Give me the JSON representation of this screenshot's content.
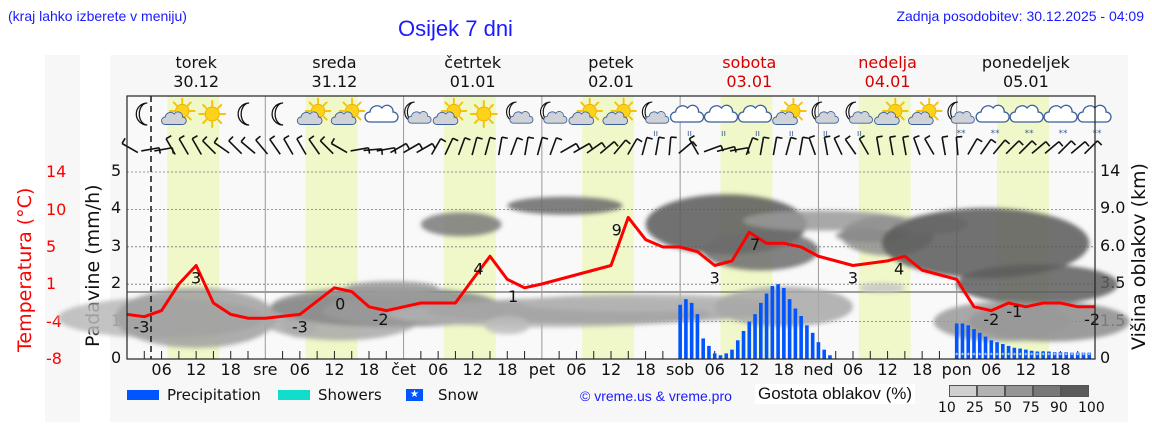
{
  "header": {
    "city_hint": "(kraj lahko izberete v meniju)",
    "title": "Osijek 7 dni",
    "last_update": "Zadnja posodobitev: 30.12.2025 - 04:09"
  },
  "days": [
    {
      "name": "torek",
      "date": "30.12",
      "weekend": false
    },
    {
      "name": "sreda",
      "date": "31.12",
      "weekend": false
    },
    {
      "name": "četrtek",
      "date": "01.01",
      "weekend": false
    },
    {
      "name": "petek",
      "date": "02.01",
      "weekend": false
    },
    {
      "name": "sobota",
      "date": "03.01",
      "weekend": true
    },
    {
      "name": "nedelja",
      "date": "04.01",
      "weekend": true
    },
    {
      "name": "ponedeljek",
      "date": "05.01",
      "weekend": false
    }
  ],
  "x_ticks": [
    "06",
    "12",
    "18",
    "sre",
    "06",
    "12",
    "18",
    "čet",
    "06",
    "12",
    "18",
    "pet",
    "06",
    "12",
    "18",
    "sob",
    "06",
    "12",
    "18",
    "ned",
    "06",
    "12",
    "18",
    "pon",
    "06",
    "12",
    "18"
  ],
  "axes": {
    "left_temp_label": "Temperatura (°C)",
    "left_precip_label": "Padavine (mm/h)",
    "right_label": "Višina oblakov (km)",
    "temp_ticks": [
      "14",
      "10",
      "5",
      "1",
      "-4",
      "-8"
    ],
    "precip_ticks": [
      "5",
      "4",
      "3",
      "2",
      "1",
      "0"
    ],
    "cloud_ticks": [
      "14",
      "9.0",
      "6.0",
      "3.5",
      "1.5",
      "0"
    ]
  },
  "legend": {
    "precipitation": "Precipitation",
    "showers": "Showers",
    "snow": "Snow",
    "copyright": "© vreme.us & vreme.pro",
    "cloud_density": "Gostota oblakov (%)",
    "cloud_scale": [
      "10",
      "25",
      "50",
      "75",
      "90",
      "100"
    ]
  },
  "colors": {
    "temp_line": "#ff0000",
    "precip": "#0055ff",
    "showers": "#11ddcc",
    "snow": "#0055ff",
    "daylight": "#f0f7c8",
    "title_blue": "#1a1aff",
    "weekend_red": "#d40000",
    "cloud_scale": [
      "#cfcfcf",
      "#b2b2b2",
      "#959595",
      "#787878",
      "#5a5a5a"
    ]
  },
  "icons": [
    "moon-icon",
    "sun-cloud-icon",
    "sun-icon",
    "moon-icon",
    "moon-icon",
    "sun-cloud-icon",
    "sun-cloud-icon",
    "cloud-icon",
    "moon-cloud-icon",
    "sun-cloud-icon",
    "sun-icon",
    "moon-cloud-icon",
    "moon-cloud-icon",
    "sun-cloud-icon",
    "sun-cloud-icon",
    "moon-cloud-rain-icon",
    "cloud-rain-icon",
    "cloud-rain-icon",
    "cloud-rain-icon",
    "sun-cloud-rain-icon",
    "moon-cloud-rain-icon",
    "moon-cloud-rain-icon",
    "sun-cloud-icon",
    "sun-cloud-icon",
    "moon-cloud-snow-icon",
    "cloud-snow-icon",
    "cloud-snow-icon",
    "cloud-snow-icon",
    "cloud-snow-icon"
  ],
  "chart_data": {
    "type": "line",
    "title": "Osijek 7 dni",
    "xlabel": "",
    "ylabel": "Padavine (mm/h)",
    "ylim": [
      0,
      5
    ],
    "x_range_hours": [
      0,
      168
    ],
    "now_marker_hour": 4.15,
    "daylight_hours": [
      [
        7,
        16
      ],
      [
        31,
        40
      ],
      [
        55,
        64
      ],
      [
        79,
        88
      ],
      [
        103,
        112
      ],
      [
        127,
        136
      ],
      [
        151,
        160
      ]
    ],
    "series": [
      {
        "name": "Temperatura (°C)",
        "x_hours": [
          0,
          3,
          6,
          9,
          12,
          15,
          18,
          21,
          24,
          30,
          36,
          39,
          42,
          45,
          48,
          51,
          54,
          57,
          60,
          63,
          66,
          69,
          72,
          78,
          84,
          87,
          90,
          93,
          96,
          99,
          102,
          105,
          108,
          111,
          114,
          117,
          120,
          126,
          132,
          135,
          138,
          141,
          144,
          147,
          150,
          153,
          156,
          159,
          162,
          165,
          168
        ],
        "values": [
          -3,
          -3.3,
          -2.5,
          1,
          3,
          -1.5,
          -3,
          -3.5,
          -3.5,
          -3,
          0.5,
          0,
          -2,
          -2.5,
          -2,
          -1.5,
          -1.5,
          -1.5,
          1.5,
          4,
          1.5,
          0.5,
          1,
          2,
          3,
          9,
          6,
          5,
          5,
          4.5,
          3,
          3.5,
          7,
          5.5,
          5.5,
          5,
          4,
          3,
          3.5,
          4,
          2.5,
          2,
          1.5,
          -2,
          -2.5,
          -1.5,
          -2,
          -1.5,
          -1.5,
          -2,
          -2
        ]
      },
      {
        "name": "Precipitation (mm/h)",
        "x_hours": [
          96,
          97,
          98,
          99,
          100,
          101,
          102,
          103,
          104,
          105,
          106,
          107,
          108,
          109,
          110,
          111,
          112,
          113,
          114,
          115,
          116,
          117,
          118,
          119,
          120,
          121,
          122,
          144,
          145,
          146,
          147,
          148,
          149,
          150,
          151,
          152,
          153,
          154,
          155,
          156,
          157,
          158,
          159,
          160,
          161,
          162,
          163,
          164,
          165,
          166,
          167
        ],
        "values": [
          1.45,
          1.6,
          1.5,
          1.2,
          0.55,
          0.35,
          0.15,
          0.1,
          0.15,
          0.25,
          0.5,
          0.75,
          1.0,
          1.2,
          1.5,
          1.75,
          1.95,
          2.0,
          1.9,
          1.6,
          1.35,
          1.15,
          0.9,
          0.7,
          0.45,
          0.25,
          0.1,
          0.95,
          0.95,
          0.9,
          0.8,
          0.7,
          0.6,
          0.5,
          0.45,
          0.4,
          0.35,
          0.3,
          0.28,
          0.25,
          0.22,
          0.2,
          0.2,
          0.2,
          0.18,
          0.18,
          0.18,
          0.17,
          0.17,
          0.17,
          0.17
        ]
      }
    ],
    "temp_labels": [
      {
        "hour": 2.5,
        "text": "-3"
      },
      {
        "hour": 12,
        "text": "3"
      },
      {
        "hour": 30,
        "text": "-3"
      },
      {
        "hour": 37,
        "text": "0"
      },
      {
        "hour": 44,
        "text": "-2"
      },
      {
        "hour": 61,
        "text": "4"
      },
      {
        "hour": 67,
        "text": "1"
      },
      {
        "hour": 85,
        "text": "9"
      },
      {
        "hour": 102,
        "text": "3"
      },
      {
        "hour": 109,
        "text": "7"
      },
      {
        "hour": 126,
        "text": "3"
      },
      {
        "hour": 134,
        "text": "4"
      },
      {
        "hour": 150,
        "text": "-2"
      },
      {
        "hour": 154,
        "text": "-1"
      },
      {
        "hour": 167.5,
        "text": "-2"
      }
    ],
    "legend": [
      "Precipitation",
      "Showers",
      "Snow"
    ],
    "grid": true
  }
}
